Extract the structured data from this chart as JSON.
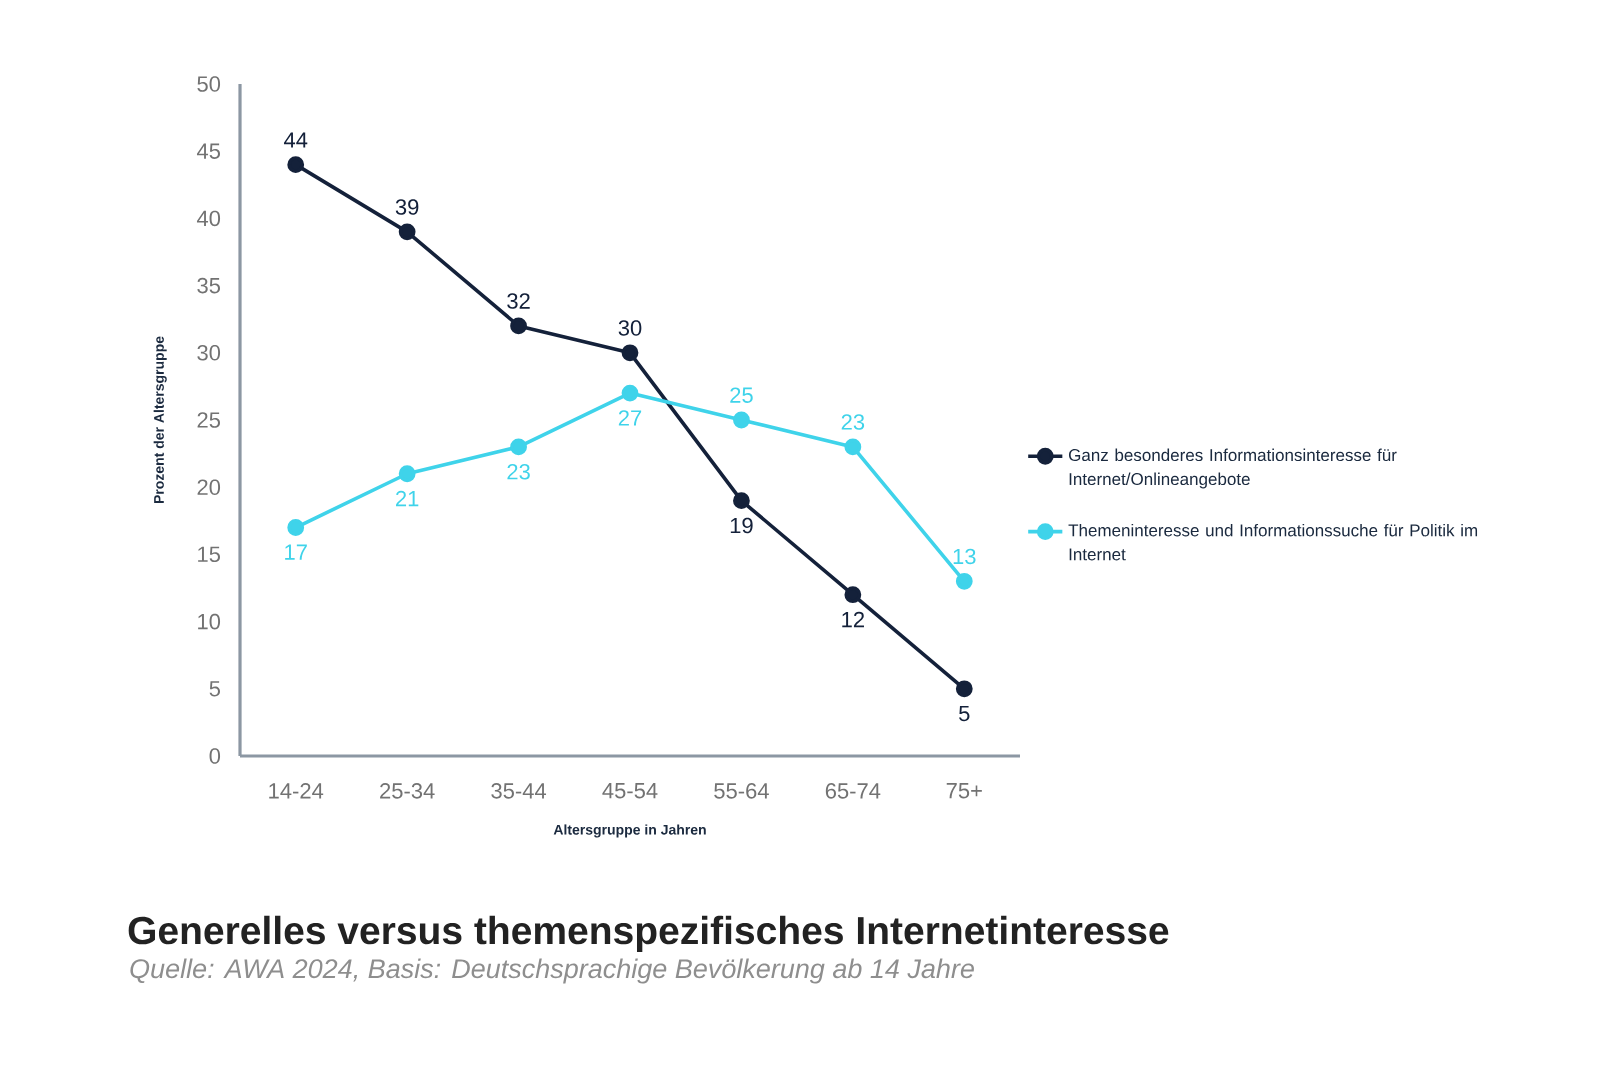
{
  "chart_data": {
    "type": "line",
    "title": "Generelles versus themenspezifisches Internetinteresse",
    "annotations": [
      "Quelle: AWA 2024, Basis: Deutschsprachige Bevölkerung ab 14 Jahre"
    ],
    "xlabel": "Altersgruppe in Jahren",
    "ylabel": "Prozent der Altersgruppe",
    "categories": [
      "14-24",
      "25-34",
      "35-44",
      "45-54",
      "55-64",
      "65-74",
      "75+"
    ],
    "series": [
      {
        "name": "Ganz besonderes Informationsinteresse für Internet/Onlineangebote",
        "color": "#14213a",
        "values": [
          44,
          39,
          32,
          30,
          19,
          12,
          5
        ]
      },
      {
        "name": "Themeninteresse und Informationssuche für Politik im Internet",
        "color": "#3fd3ea",
        "values": [
          17,
          21,
          23,
          27,
          25,
          23,
          13
        ]
      }
    ],
    "ylim": [
      0,
      50
    ],
    "yticks": [
      0,
      5,
      10,
      15,
      20,
      25,
      30,
      35,
      40,
      45,
      50
    ],
    "data_labels": true,
    "legend": "right",
    "marker": "circle",
    "line_style": "solid"
  }
}
